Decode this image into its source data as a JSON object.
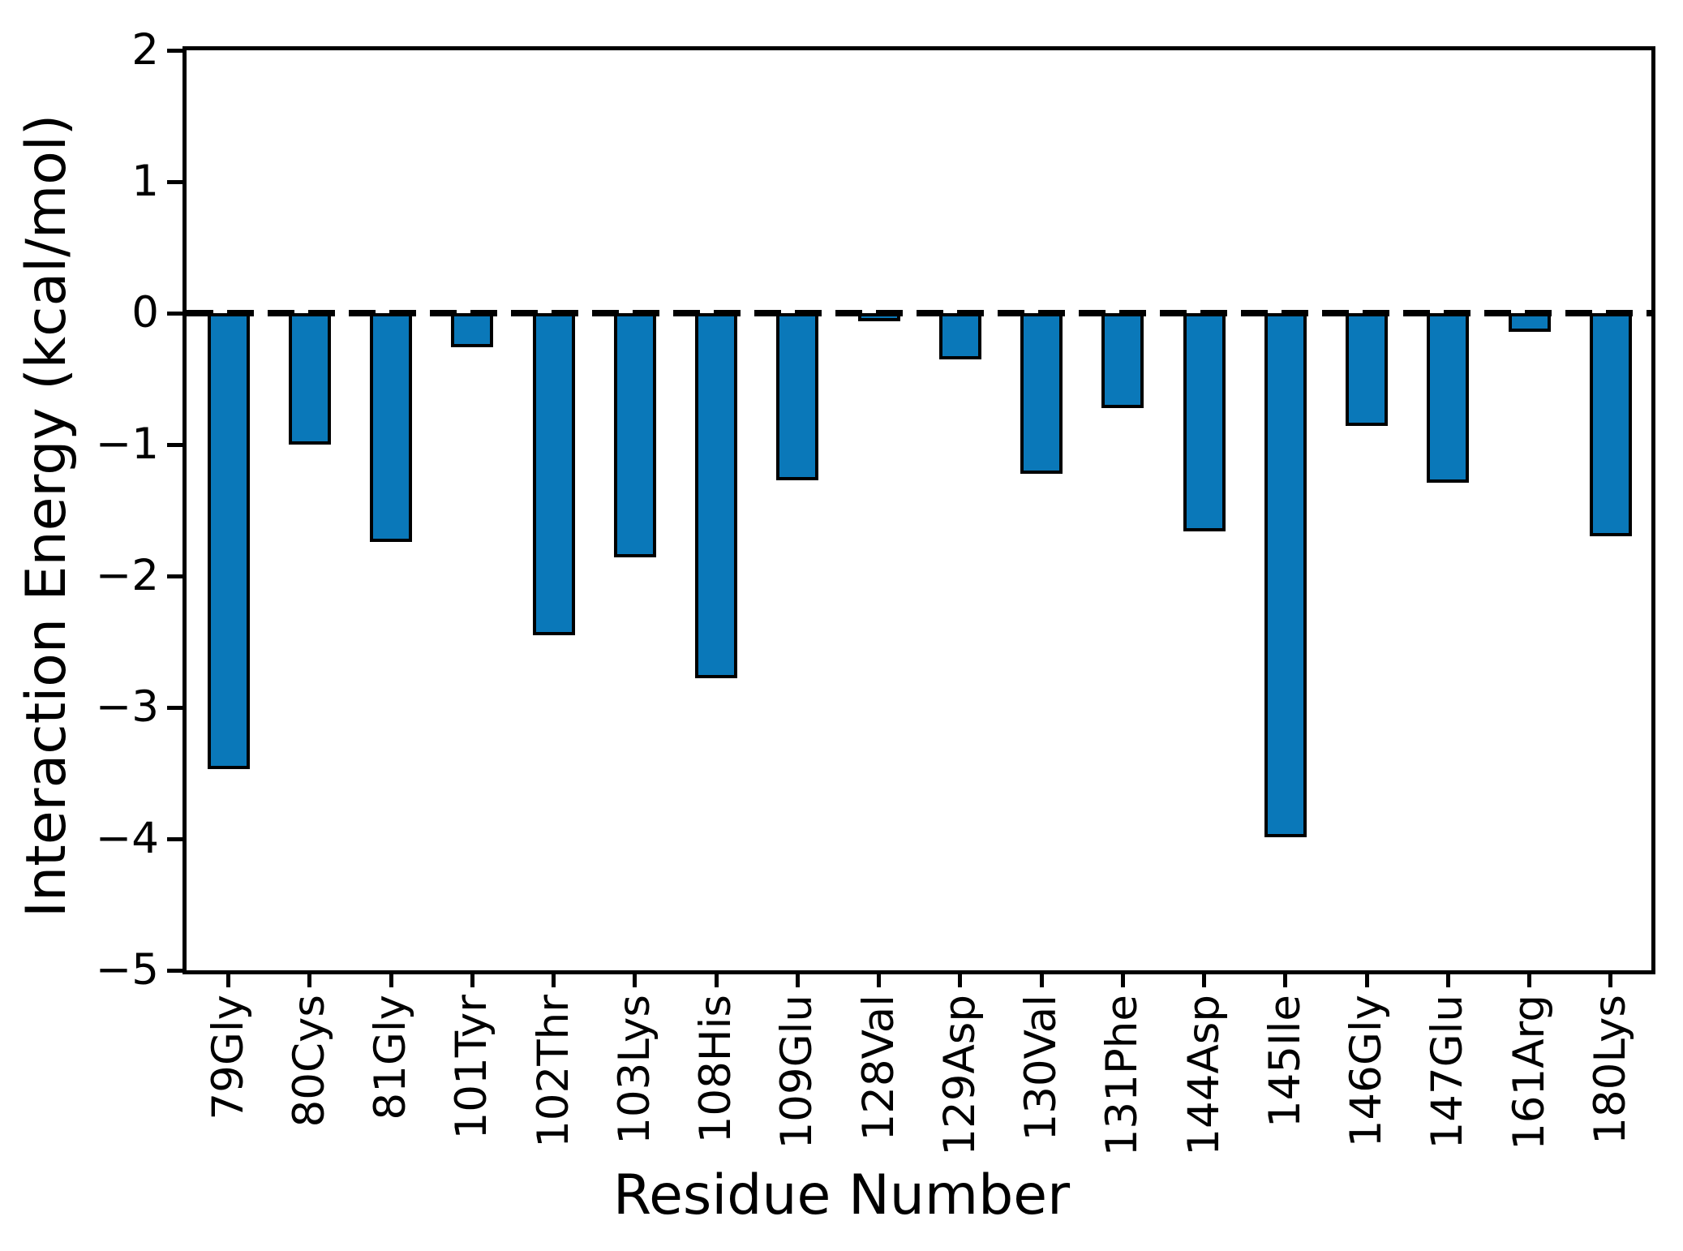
{
  "figure": {
    "background_color": "#ffffff",
    "bar_fill_color": "#0a78b9",
    "bar_edge_color": "#000000",
    "axis_color": "#000000"
  },
  "chart_data": {
    "type": "bar",
    "title": "",
    "xlabel": "Residue Number",
    "ylabel": "Interaction Energy (kcal/mol)",
    "categories": [
      "79Gly",
      "80Cys",
      "81Gly",
      "101Tyr",
      "102Thr",
      "103Lys",
      "108His",
      "109Glu",
      "128Val",
      "129Asp",
      "130Val",
      "131Phe",
      "144Asp",
      "145Ile",
      "146Gly",
      "147Glu",
      "161Arg",
      "180Lys"
    ],
    "values": [
      -3.47,
      -1.0,
      -1.74,
      -0.26,
      -2.45,
      -1.86,
      -2.78,
      -1.27,
      -0.06,
      -0.35,
      -1.22,
      -0.72,
      -1.66,
      -3.99,
      -0.86,
      -1.29,
      -0.14,
      -1.7
    ],
    "ylim": [
      -5,
      2
    ],
    "yticks": [
      2,
      1,
      0,
      -1,
      -2,
      -3,
      -4,
      -5
    ],
    "zero_line": {
      "y": 0,
      "style": "dashed",
      "color": "#000000"
    },
    "grid": false,
    "legend_position": "none",
    "bar_orientation": "vertical",
    "tick_direction": "out"
  }
}
